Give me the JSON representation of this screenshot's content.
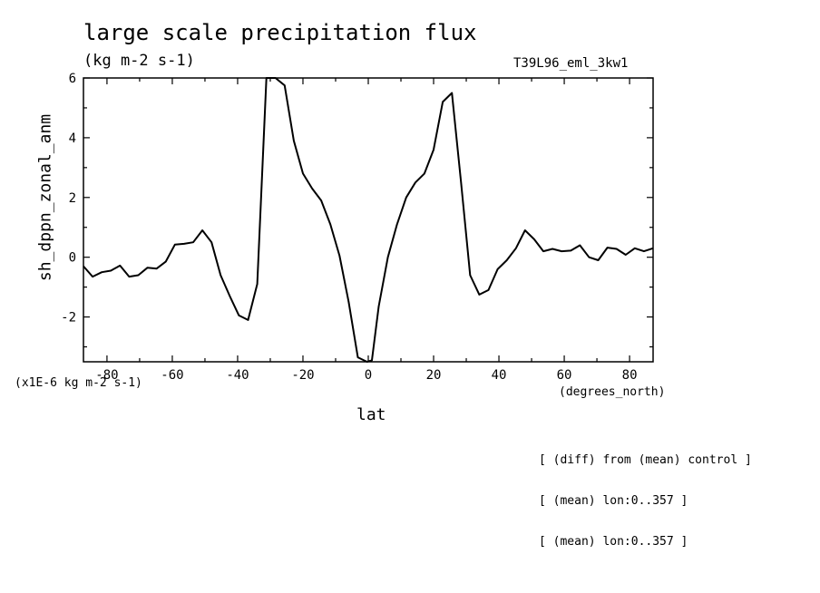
{
  "chart_data": {
    "type": "line",
    "title": "large scale precipitation flux",
    "units": "(kg m-2 s-1)",
    "run_id": "T39L96_eml_3kw1",
    "ylabel": "sh_dppn_zonal_anm",
    "xlabel": "lat",
    "x_units": "(degrees_north)",
    "y_scale_note": "(x1E-6 kg m-2 s-1)",
    "notes": [
      "[ (diff) from (mean) control ]",
      "[ (mean) lon:0..357 ]",
      "[ (mean) lon:0..357 ]"
    ],
    "xlim": [
      -87.2,
      87.2
    ],
    "ylim": [
      -3.5,
      6
    ],
    "x_ticks": [
      -80,
      -60,
      -40,
      -20,
      0,
      20,
      40,
      60,
      80
    ],
    "x_tick_labels": [
      "-80",
      "-60",
      "-40",
      "-20",
      "0",
      "20",
      "40",
      "60",
      "80"
    ],
    "y_ticks": [
      -2,
      0,
      2,
      4,
      6
    ],
    "y_tick_labels": [
      "-2",
      "0",
      "2",
      "4",
      "6"
    ],
    "series": [
      {
        "x": [
          -87.2,
          -84.4,
          -81.6,
          -78.8,
          -76.0,
          -73.2,
          -70.4,
          -67.6,
          -64.8,
          -62.0,
          -59.2,
          -56.4,
          -53.6,
          -50.8,
          -48.0,
          -45.2,
          -42.4,
          -39.6,
          -36.8,
          -34.0,
          -31.2,
          -28.4,
          -25.6,
          -22.8,
          -20.0,
          -17.2,
          -14.4,
          -11.6,
          -8.8,
          -6.0,
          -3.2,
          -0.4,
          1.1,
          3.2,
          6.0,
          8.8,
          11.6,
          14.4,
          17.2,
          20.0,
          22.8,
          25.6,
          28.4,
          31.2,
          34.0,
          36.8,
          39.6,
          42.4,
          45.2,
          48.0,
          50.8,
          53.6,
          56.4,
          59.2,
          62.0,
          64.8,
          67.6,
          70.4,
          73.2,
          76.0,
          78.8,
          81.6,
          84.4,
          87.2
        ],
        "y": [
          -0.3,
          -0.65,
          -0.5,
          -0.45,
          -0.28,
          -0.65,
          -0.6,
          -0.35,
          -0.38,
          -0.15,
          0.42,
          0.45,
          0.5,
          0.9,
          0.5,
          -0.6,
          -1.3,
          -1.95,
          -2.1,
          -0.9,
          6.0,
          6.0,
          5.75,
          3.9,
          2.8,
          2.3,
          1.9,
          1.1,
          0.05,
          -1.5,
          -3.35,
          -3.5,
          -3.45,
          -1.65,
          0.0,
          1.1,
          2.0,
          2.5,
          2.8,
          3.6,
          5.2,
          5.5,
          2.5,
          -0.6,
          -1.25,
          -1.1,
          -0.4,
          -0.1,
          0.3,
          0.9,
          0.6,
          0.2,
          0.28,
          0.2,
          0.22,
          0.4,
          0.0,
          -0.1,
          0.32,
          0.28,
          0.08,
          0.3,
          0.2,
          0.3
        ]
      }
    ],
    "colors": {
      "line": "#000000",
      "background": "#ffffff"
    },
    "grid": false,
    "legend": "none"
  }
}
